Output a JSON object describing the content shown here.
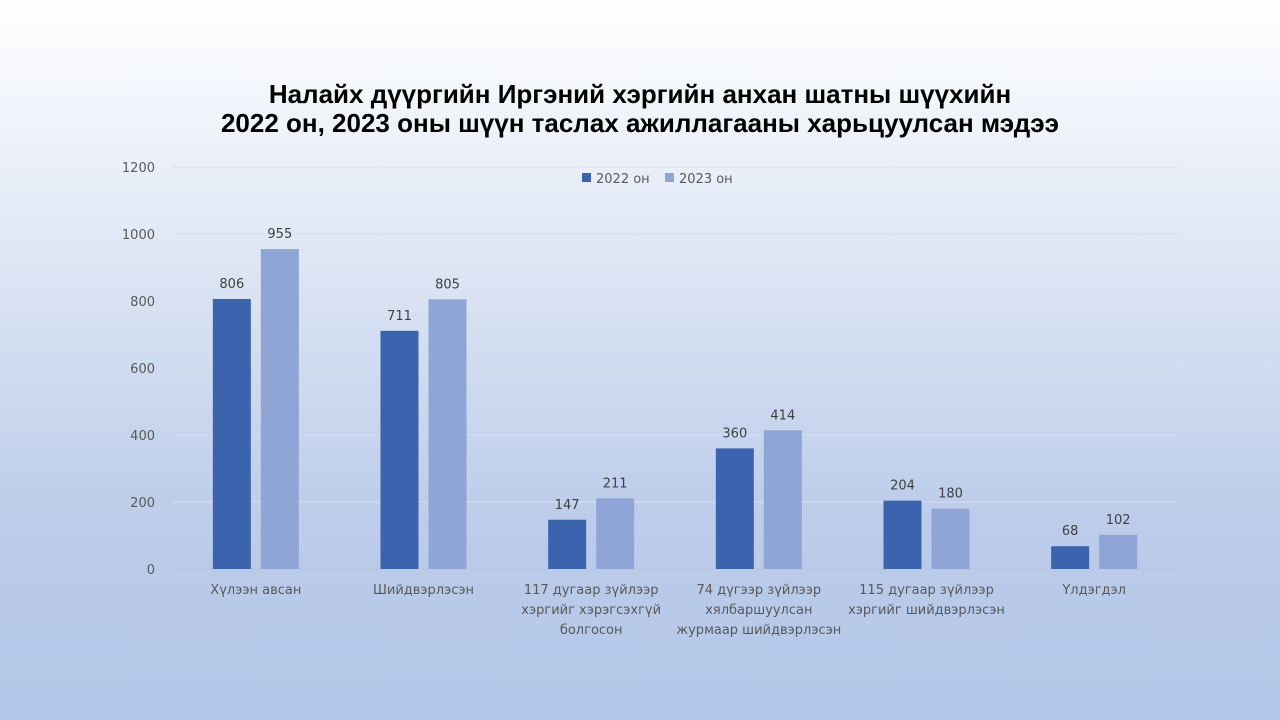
{
  "slide": {
    "title_line1": "Налайх дүүргийн Иргэний хэргийн анхан шатны шүүхийн",
    "title_line2": "2022 он, 2023 оны шүүн таслах ажиллагааны харьцуулсан мэдээ"
  },
  "chart_data": {
    "type": "bar",
    "categories": [
      [
        "Хүлээн авсан"
      ],
      [
        "Шийдвэрлэсэн"
      ],
      [
        "117 дугаар зүйлээр",
        "хэргийг хэрэгсэхгүй",
        "болгосон"
      ],
      [
        "74 дүгээр зүйлээр",
        "хялбаршуулсан",
        "журмаар шийдвэрлэсэн"
      ],
      [
        "115 дугаар зүйлээр",
        "хэргийг шийдвэрлэсэн"
      ],
      [
        "Үлдэгдэл"
      ]
    ],
    "series": [
      {
        "name": "2022 он",
        "color": "#3c63ad",
        "values": [
          806,
          711,
          147,
          360,
          204,
          68
        ]
      },
      {
        "name": "2023 он",
        "color": "#8fa5d6",
        "values": [
          955,
          805,
          211,
          414,
          180,
          102
        ]
      }
    ],
    "ylim": [
      0,
      1200
    ],
    "yticks": [
      0,
      200,
      400,
      600,
      800,
      1000,
      1200
    ],
    "grid": true,
    "legend_position": "top-center",
    "data_labels": true
  }
}
